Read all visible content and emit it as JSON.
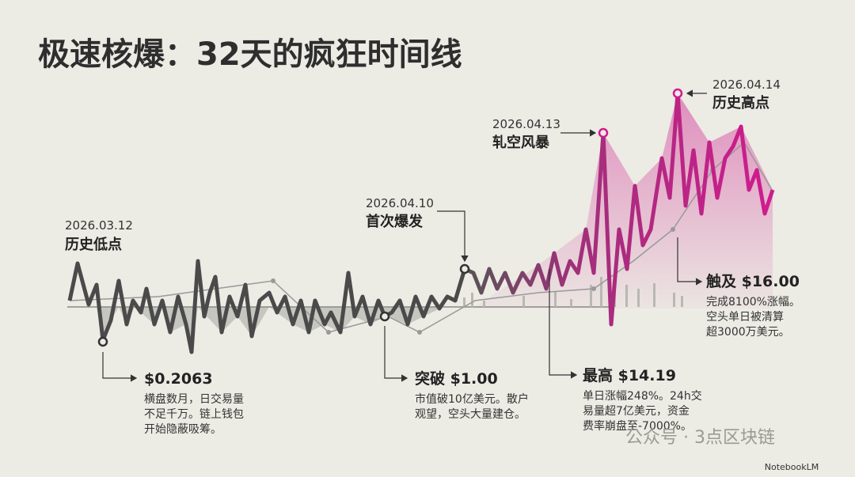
{
  "title": "极速核爆：32天的疯狂时间线",
  "annotations": [
    {
      "date": "2026.03.12",
      "label": "历史低点"
    },
    {
      "date": "2026.04.10",
      "label": "首次爆发"
    },
    {
      "date": "2026.04.13",
      "label": "轧空风暴"
    },
    {
      "date": "2026.04.14",
      "label": "历史高点"
    }
  ],
  "callouts": [
    {
      "headline": "$0.2063",
      "lines": [
        "横盘数月，日交易量",
        "不足千万。链上钱包",
        "开始隐蔽吸筹。"
      ]
    },
    {
      "headline": "突破 $1.00",
      "lines": [
        "市值破10亿美元。散户",
        "观望，空头大量建仓。"
      ]
    },
    {
      "headline": "最高 $14.19",
      "lines": [
        "单日涨幅248%。24h交",
        "易量超7亿美元，资金",
        "费率崩盘至-7000%。"
      ]
    },
    {
      "headline": "触及 $16.00",
      "lines": [
        "完成8100%涨幅。",
        "空头单日被清算",
        "超3000万美元。"
      ]
    }
  ],
  "watermark": "公众号 · 3点区块链",
  "brand": "NotebookLM"
}
